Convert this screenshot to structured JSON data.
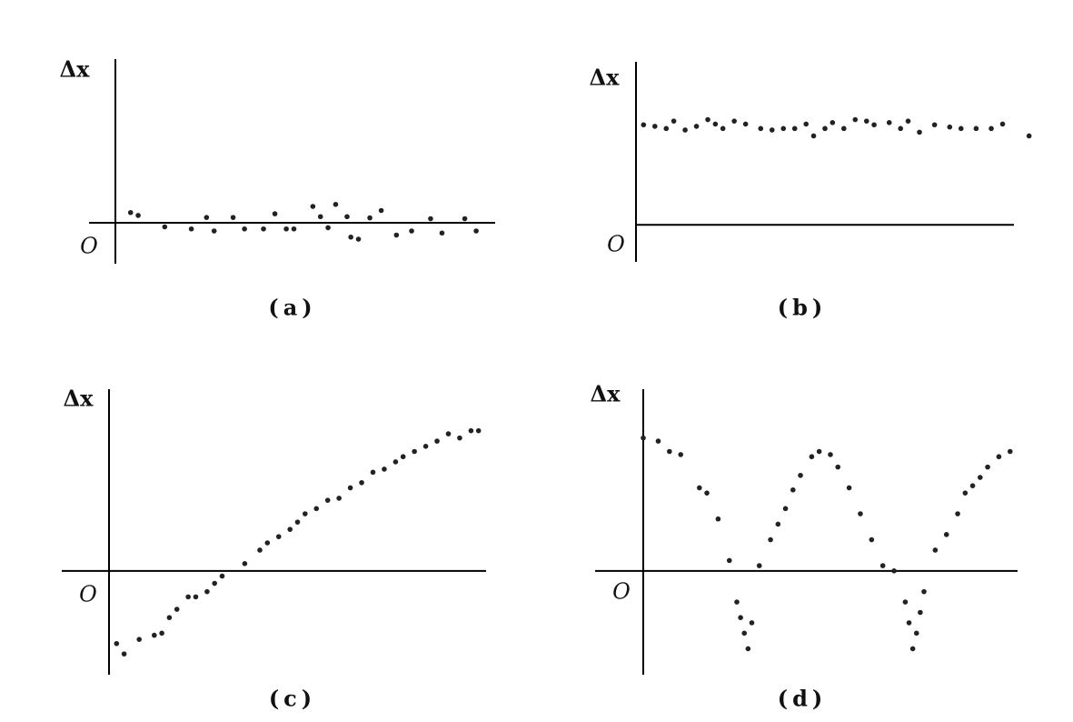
{
  "chart_data": [
    {
      "type": "scatter",
      "y_label": "Δx",
      "origin_label": "O",
      "caption": "(a)",
      "color": "#222",
      "xlim": [
        0,
        100
      ],
      "ylim": [
        -1,
        4
      ],
      "x": [
        4,
        6,
        13,
        20,
        24,
        26,
        31,
        34,
        39,
        42,
        45,
        47,
        52,
        54,
        56,
        58,
        61,
        62,
        64,
        67,
        70,
        74,
        78,
        83,
        86,
        92,
        95
      ],
      "values": [
        0.25,
        0.18,
        -0.1,
        -0.15,
        0.13,
        -0.2,
        0.13,
        -0.15,
        -0.15,
        0.22,
        -0.15,
        -0.15,
        0.4,
        0.15,
        -0.12,
        0.45,
        0.15,
        -0.35,
        -0.4,
        0.12,
        0.3,
        -0.3,
        -0.2,
        0.1,
        -0.25,
        0.1,
        -0.2
      ]
    },
    {
      "type": "scatter",
      "y_label": "Δx",
      "origin_label": "O",
      "caption": "(b)",
      "color": "#222",
      "xlim": [
        0,
        100
      ],
      "ylim": [
        -0.5,
        2.2
      ],
      "x": [
        2,
        5,
        8,
        10,
        13,
        16,
        19,
        21,
        23,
        26,
        29,
        33,
        36,
        39,
        42,
        45,
        47,
        50,
        52,
        55,
        58,
        61,
        63,
        67,
        70,
        72,
        75,
        79,
        83,
        86,
        90,
        94,
        97,
        104
      ],
      "values": [
        1.35,
        1.33,
        1.3,
        1.4,
        1.28,
        1.33,
        1.42,
        1.36,
        1.3,
        1.4,
        1.36,
        1.3,
        1.28,
        1.3,
        1.3,
        1.36,
        1.2,
        1.3,
        1.38,
        1.3,
        1.42,
        1.4,
        1.35,
        1.38,
        1.3,
        1.4,
        1.25,
        1.35,
        1.32,
        1.3,
        1.3,
        1.3,
        1.36,
        1.2
      ]
    },
    {
      "type": "scatter",
      "y_label": "Δx",
      "origin_label": "O",
      "caption": "(c)",
      "color": "#222",
      "xlim": [
        0,
        100
      ],
      "ylim": [
        -1,
        1.75
      ],
      "x": [
        2,
        4,
        8,
        12,
        14,
        16,
        18,
        21,
        23,
        26,
        28,
        30,
        36,
        40,
        42,
        45,
        48,
        50,
        52,
        55,
        58,
        61,
        64,
        67,
        70,
        73,
        76,
        78,
        81,
        84,
        87,
        90,
        93,
        96,
        98
      ],
      "values": [
        -0.7,
        -0.8,
        -0.66,
        -0.62,
        -0.6,
        -0.45,
        -0.37,
        -0.25,
        -0.25,
        -0.2,
        -0.12,
        -0.05,
        0.07,
        0.2,
        0.27,
        0.33,
        0.4,
        0.47,
        0.55,
        0.6,
        0.68,
        0.7,
        0.8,
        0.85,
        0.95,
        0.98,
        1.05,
        1.1,
        1.15,
        1.2,
        1.25,
        1.32,
        1.28,
        1.35,
        1.35
      ]
    },
    {
      "type": "scatter",
      "y_label": "Δx",
      "origin_label": "O",
      "caption": "(d)",
      "color": "#222",
      "xlim": [
        0,
        100
      ],
      "ylim": [
        -1,
        1.75
      ],
      "x": [
        0,
        4,
        7,
        10,
        15,
        17,
        20,
        23,
        25,
        26,
        27,
        28,
        29,
        31,
        34,
        36,
        38,
        40,
        42,
        45,
        47,
        50,
        52,
        55,
        58,
        61,
        64,
        67,
        70,
        71,
        72,
        73,
        74,
        75,
        78,
        81,
        84,
        86,
        88,
        90,
        92,
        95,
        98
      ],
      "values": [
        1.28,
        1.25,
        1.15,
        1.12,
        0.8,
        0.75,
        0.5,
        0.1,
        -0.3,
        -0.45,
        -0.6,
        -0.75,
        -0.5,
        0.05,
        0.3,
        0.45,
        0.6,
        0.78,
        0.92,
        1.1,
        1.15,
        1.12,
        1.0,
        0.8,
        0.55,
        0.3,
        0.05,
        0.0,
        -0.3,
        -0.5,
        -0.75,
        -0.6,
        -0.4,
        -0.2,
        0.2,
        0.35,
        0.55,
        0.75,
        0.82,
        0.9,
        1.0,
        1.1,
        1.15
      ]
    }
  ]
}
